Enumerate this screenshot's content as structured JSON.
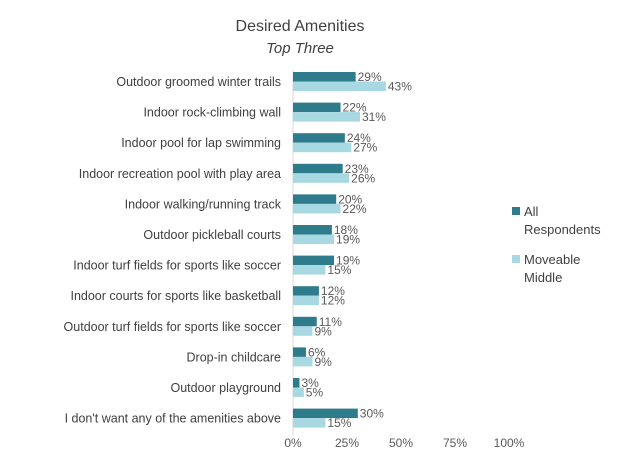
{
  "chart_data": {
    "type": "bar",
    "orientation": "horizontal",
    "title": "Desired Amenities",
    "subtitle": "Top Three",
    "categories": [
      "Outdoor groomed winter trails",
      "Indoor rock-climbing wall",
      "Indoor pool for lap swimming",
      "Indoor recreation pool with play area",
      "Indoor walking/running track",
      "Outdoor pickleball courts",
      "Indoor turf fields for sports like soccer",
      "Indoor courts for sports like basketball",
      "Outdoor turf fields for sports like soccer",
      "Drop-in childcare",
      "Outdoor playground",
      "I don't want any of the amenities above"
    ],
    "series": [
      {
        "name": "All Respondents",
        "color": "#2e7b8c",
        "values": [
          29,
          22,
          24,
          23,
          20,
          18,
          19,
          12,
          11,
          6,
          3,
          30
        ]
      },
      {
        "name": "Moveable Middle",
        "color": "#a8d8e2",
        "values": [
          43,
          31,
          27,
          26,
          22,
          19,
          15,
          12,
          9,
          9,
          5,
          15
        ]
      }
    ],
    "xlim": [
      0,
      100
    ],
    "xticks": [
      "0%",
      "25%",
      "50%",
      "75%",
      "100%"
    ],
    "value_suffix": "%",
    "grid": false,
    "legend_position": "right"
  }
}
